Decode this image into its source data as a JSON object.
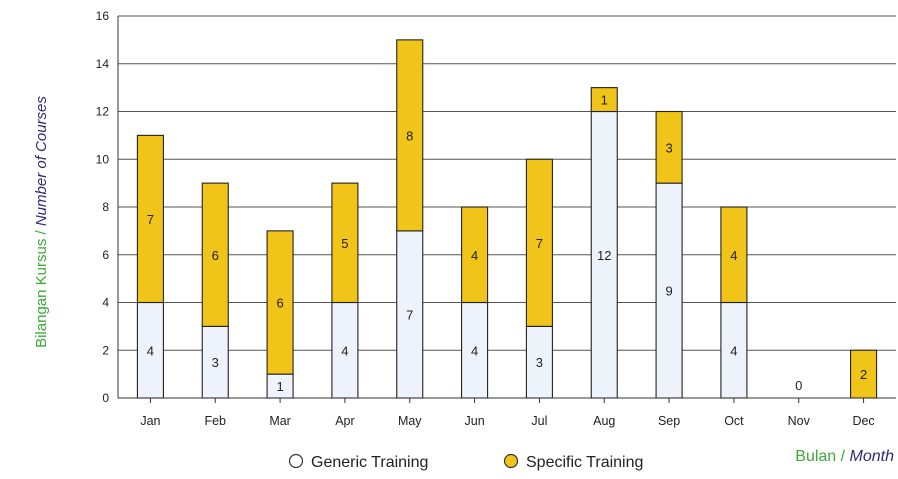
{
  "chart_data": {
    "type": "bar",
    "stacked": true,
    "categories": [
      "Jan",
      "Feb",
      "Mar",
      "Apr",
      "May",
      "Jun",
      "Jul",
      "Aug",
      "Sep",
      "Oct",
      "Nov",
      "Dec"
    ],
    "series": [
      {
        "name": "Generic Training",
        "values": [
          4,
          3,
          1,
          4,
          7,
          4,
          3,
          12,
          9,
          4,
          0,
          0
        ],
        "color": "#eef3fb"
      },
      {
        "name": "Specific Training",
        "values": [
          7,
          6,
          6,
          5,
          8,
          4,
          7,
          1,
          3,
          4,
          0,
          2
        ],
        "color": "#f0c419"
      }
    ],
    "data_labels": {
      "Generic Training": [
        "4",
        "3",
        "1",
        "4",
        "7",
        "4",
        "3",
        "12",
        "9",
        "4",
        "0",
        ""
      ],
      "Specific Training": [
        "7",
        "6",
        "6",
        "5",
        "8",
        "4",
        "7",
        "1",
        "3",
        "4",
        "",
        "2"
      ]
    },
    "ylim": [
      0,
      16
    ],
    "yticks": [
      "0",
      "2",
      "4",
      "6",
      "8",
      "10",
      "12",
      "14",
      "16"
    ],
    "ylabel": {
      "part1": "Bilangan Kursus / ",
      "part2": "Number of Courses",
      "color1": "#3aaa35",
      "color2": "#2e2a78"
    },
    "xlabel": {
      "part1": "Bulan / ",
      "part2": "Month",
      "color1": "#3aaa35",
      "color2": "#2e2a78"
    },
    "grid": true,
    "legend_position": "bottom-center"
  }
}
